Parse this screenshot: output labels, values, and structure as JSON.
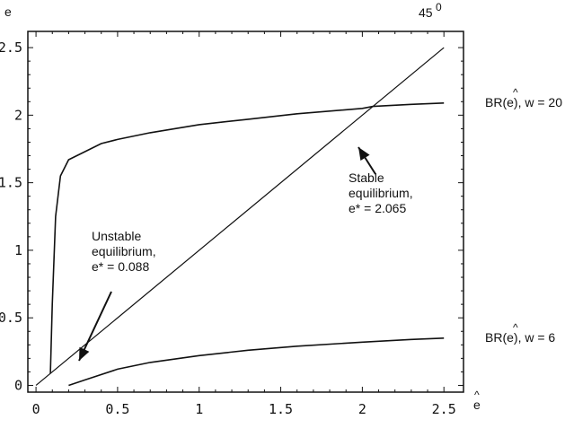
{
  "chart_data": {
    "type": "line",
    "ylabel": "e",
    "xlabel": "e",
    "xlim": [
      -0.05,
      2.62
    ],
    "ylim": [
      -0.05,
      2.62
    ],
    "x_ticks": [
      0,
      0.5,
      1,
      1.5,
      2,
      2.5
    ],
    "x_tick_labels": [
      "0",
      "0.5",
      "1",
      "1.5",
      "2",
      "2.5"
    ],
    "y_ticks": [
      0,
      0.5,
      1,
      1.5,
      2,
      2.5
    ],
    "y_tick_labels": [
      "0",
      "0.5",
      "1",
      "1.5",
      "2",
      "2.5"
    ],
    "grid": false,
    "diagonal_label": "45",
    "diagonal_label_sup": "0",
    "series": [
      {
        "name": "BR(e), w = 20",
        "label_prefix": "BR(",
        "label_var": "e",
        "label_suffix": "), w = 20",
        "x": [
          0.088,
          0.1,
          0.12,
          0.15,
          0.2,
          0.3,
          0.4,
          0.5,
          0.7,
          1.0,
          1.3,
          1.6,
          2.0,
          2.065,
          2.3,
          2.5
        ],
        "y": [
          0.088,
          0.6,
          1.25,
          1.55,
          1.67,
          1.73,
          1.79,
          1.82,
          1.87,
          1.93,
          1.97,
          2.01,
          2.05,
          2.065,
          2.08,
          2.09
        ]
      },
      {
        "name": "BR(e), w = 6",
        "label_prefix": "BR(",
        "label_var": "e",
        "label_suffix": "), w = 6",
        "x": [
          0.2,
          0.3,
          0.5,
          0.7,
          1.0,
          1.3,
          1.6,
          2.0,
          2.3,
          2.5
        ],
        "y": [
          0.0,
          0.04,
          0.12,
          0.17,
          0.22,
          0.26,
          0.29,
          0.32,
          0.34,
          0.35
        ]
      }
    ],
    "diagonal": {
      "x": [
        0,
        2.5
      ],
      "y": [
        0,
        2.5
      ]
    },
    "annotations": [
      {
        "lines": [
          "Unstable",
          "equilibrium,",
          "e* = 0.088"
        ],
        "point": [
          0.088,
          0.088
        ]
      },
      {
        "lines": [
          "Stable",
          "equilibrium,",
          "e* = 2.065"
        ],
        "point": [
          2.065,
          2.065
        ]
      }
    ]
  }
}
